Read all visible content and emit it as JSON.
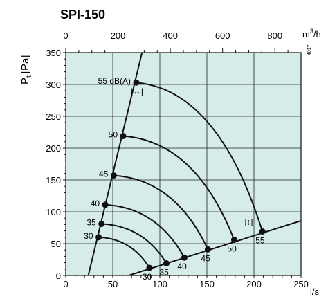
{
  "chart_data": {
    "type": "line",
    "title": "SPI-150",
    "figure_code": "4017",
    "ylabel_main": "P",
    "ylabel_sub": "t",
    "ylabel_unit": "[Pa]",
    "top_axis_unit_base": "m",
    "top_axis_unit_exp": "3",
    "top_axis_unit_tail": "/h",
    "bottom_axis_unit": "l/s",
    "xlim": [
      0,
      250
    ],
    "ylim": [
      0,
      350
    ],
    "x_ticks": [
      0,
      50,
      100,
      150,
      200,
      250
    ],
    "x_tick_labels": [
      "0",
      "50",
      "100",
      "150",
      "200",
      "250"
    ],
    "y_ticks": [
      0,
      50,
      100,
      150,
      200,
      250,
      300,
      350
    ],
    "y_tick_labels": [
      "0",
      "50",
      "100",
      "150",
      "200",
      "250",
      "300",
      "350"
    ],
    "top_ticks_m3h": [
      0,
      200,
      400,
      600,
      800
    ],
    "top_tick_labels": [
      "0",
      "200",
      "400",
      "600",
      "800"
    ],
    "plot_background": "#d6ece8",
    "grid": true,
    "boundary_min_opening": {
      "name": "",
      "x": [
        24,
        81
      ],
      "y": [
        0,
        350
      ]
    },
    "boundary_max_opening": {
      "name": "",
      "x": [
        67,
        250
      ],
      "y": [
        0,
        86
      ]
    },
    "sound_levels": [
      {
        "label": "55 dB(A)",
        "x": [
          75,
          209
        ],
        "y": [
          303,
          69
        ]
      },
      {
        "label": "50",
        "x": [
          61,
          179
        ],
        "y": [
          219,
          56
        ]
      },
      {
        "label": "45",
        "x": [
          51,
          151
        ],
        "y": [
          157,
          41
        ]
      },
      {
        "label": "40",
        "x": [
          42,
          126
        ],
        "y": [
          111,
          28
        ]
      },
      {
        "label": "35",
        "x": [
          38,
          107
        ],
        "y": [
          81,
          19
        ]
      },
      {
        "label": "30",
        "x": [
          35,
          89
        ],
        "y": [
          60,
          12
        ]
      }
    ],
    "symbols": [
      {
        "name": "opening-symbol-min",
        "text": "|↔|"
      },
      {
        "name": "opening-symbol-max",
        "text": "|↕|"
      }
    ]
  }
}
